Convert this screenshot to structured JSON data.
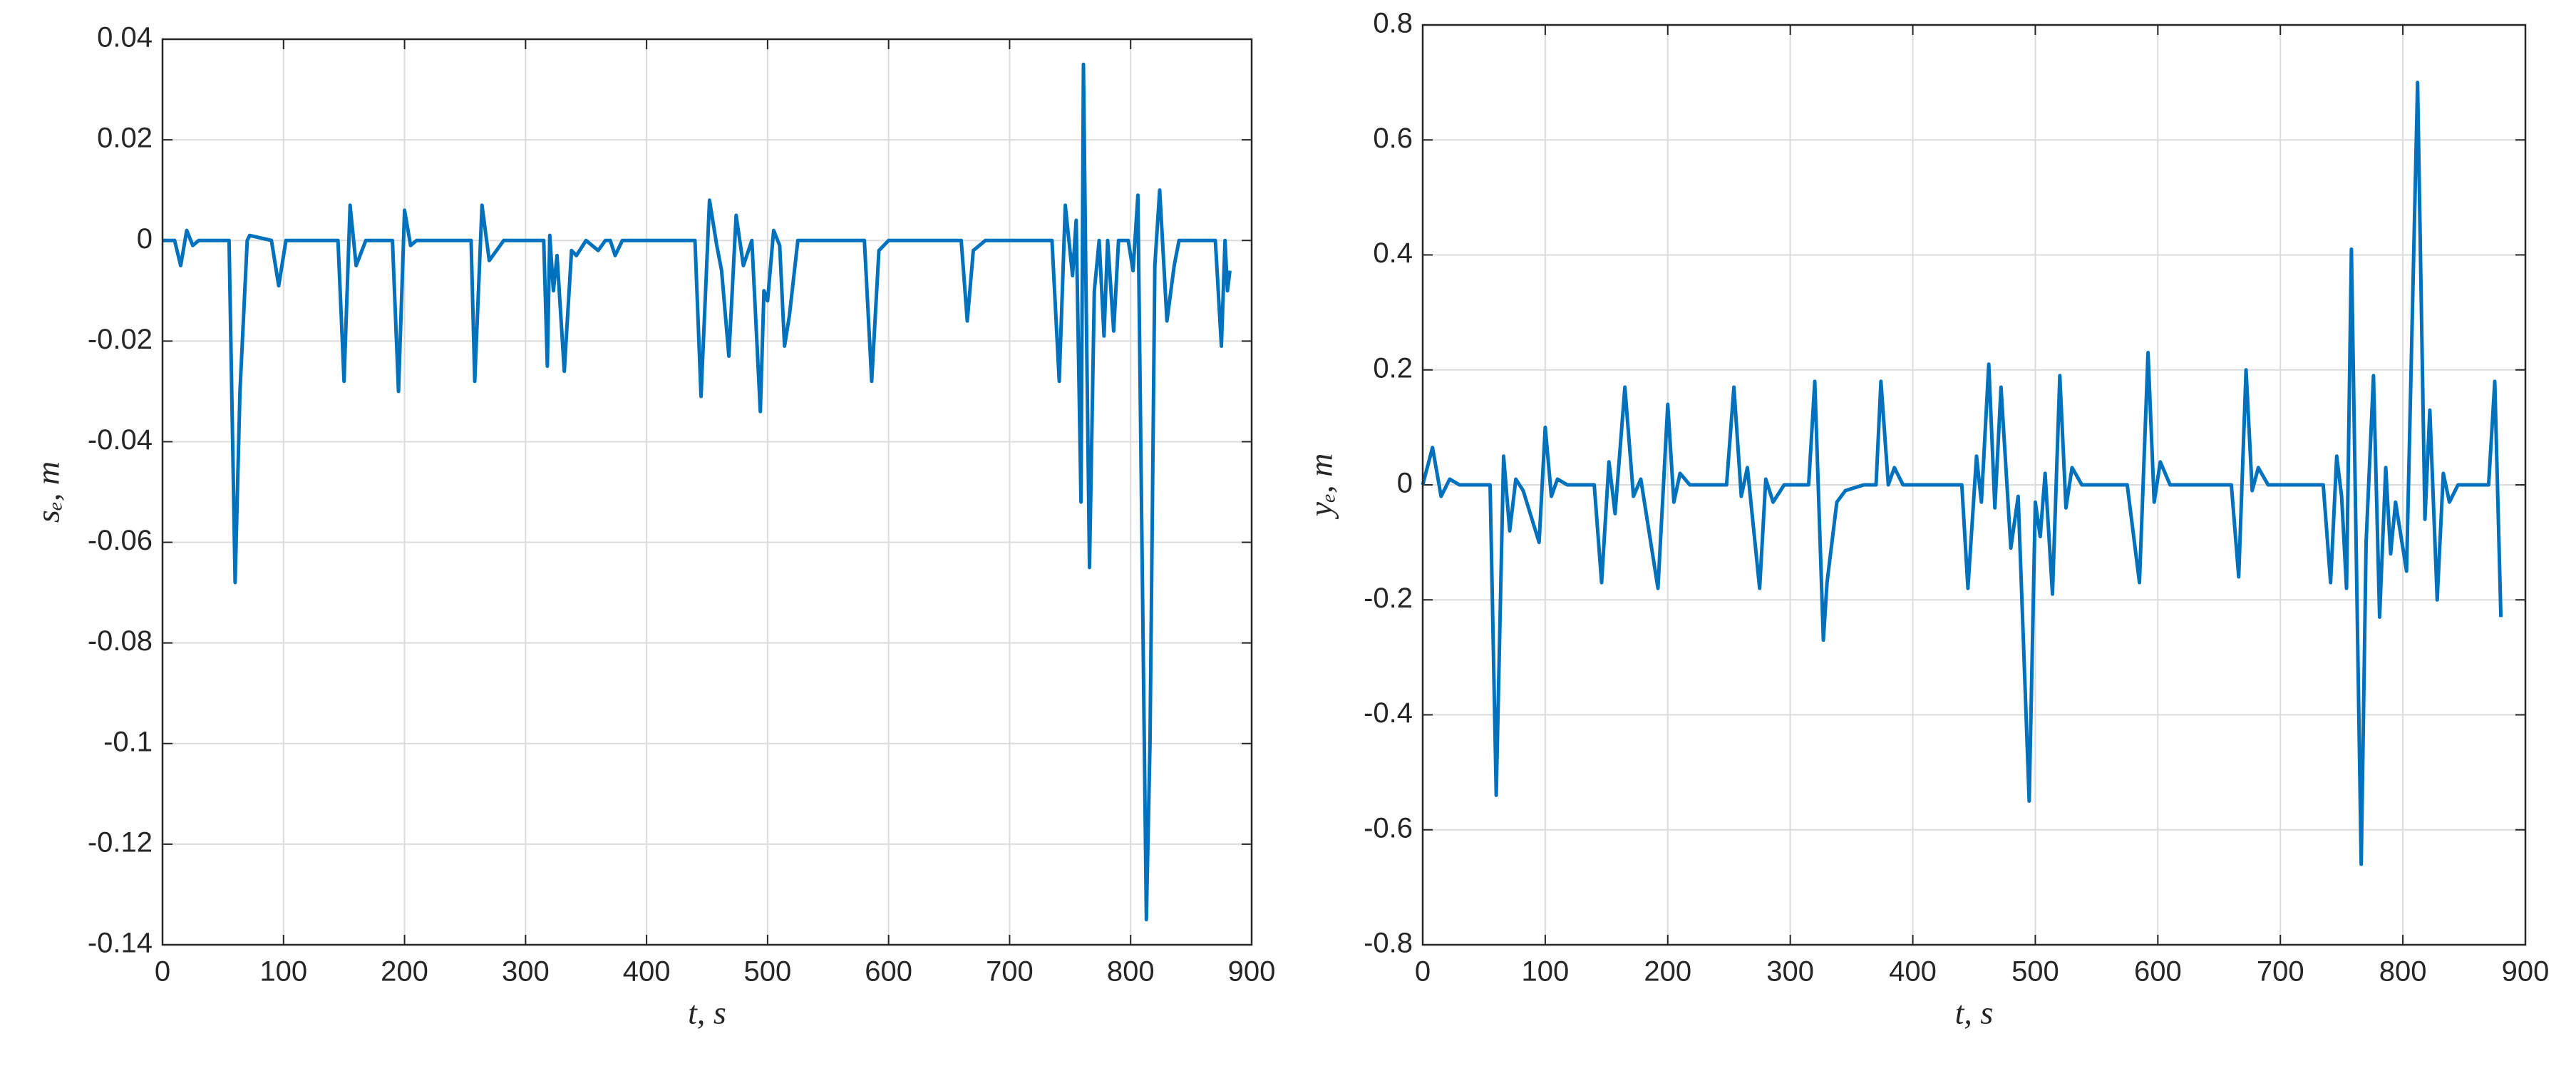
{
  "chart_data": [
    {
      "type": "line",
      "xlabel": "t, s",
      "ylabel": "sₑ, m",
      "color": "#0072bd",
      "grid": true,
      "xlim": [
        0,
        900
      ],
      "xticks": [
        0,
        100,
        200,
        300,
        400,
        500,
        600,
        700,
        800,
        900
      ],
      "ylim": [
        -0.14,
        0.04
      ],
      "yticks": [
        -0.14,
        -0.12,
        -0.1,
        -0.08,
        -0.06,
        -0.04,
        -0.02,
        0,
        0.02,
        0.04
      ],
      "x": [
        0,
        10,
        15,
        20,
        25,
        30,
        55,
        60,
        64,
        70,
        72,
        90,
        96,
        98,
        102,
        145,
        150,
        155,
        160,
        168,
        190,
        195,
        200,
        205,
        210,
        255,
        258,
        264,
        270,
        276,
        282,
        315,
        318,
        320,
        323,
        326,
        332,
        338,
        342,
        350,
        360,
        366,
        370,
        374,
        380,
        440,
        445,
        452,
        458,
        462,
        468,
        474,
        480,
        487,
        494,
        497,
        500,
        505,
        510,
        514,
        518,
        525,
        580,
        586,
        592,
        600,
        660,
        665,
        670,
        680,
        735,
        741,
        746,
        752,
        755,
        759,
        761,
        763,
        766,
        770,
        774,
        778,
        781,
        786,
        790,
        798,
        802,
        806,
        813,
        816,
        820,
        824,
        830,
        836,
        840,
        870,
        875,
        878,
        880,
        882
      ],
      "values": [
        0,
        0,
        -0.005,
        0.002,
        -0.001,
        0,
        0,
        -0.068,
        -0.03,
        0,
        0.001,
        0,
        -0.009,
        -0.006,
        0,
        0,
        -0.028,
        0.007,
        -0.005,
        0,
        0,
        -0.03,
        0.006,
        -0.001,
        0,
        0,
        -0.028,
        0.007,
        -0.004,
        -0.002,
        0,
        0,
        -0.025,
        0.001,
        -0.01,
        -0.003,
        -0.026,
        -0.002,
        -0.003,
        0,
        -0.002,
        0,
        0,
        -0.003,
        0,
        0,
        -0.031,
        0.008,
        -0.001,
        -0.006,
        -0.023,
        0.005,
        -0.005,
        0,
        -0.034,
        -0.01,
        -0.012,
        0.002,
        -0.001,
        -0.021,
        -0.015,
        0,
        0,
        -0.028,
        -0.002,
        0,
        0,
        -0.016,
        -0.002,
        0,
        0,
        -0.028,
        0.007,
        -0.007,
        0.004,
        -0.052,
        0.035,
        -0.007,
        -0.065,
        -0.01,
        0,
        -0.019,
        0,
        -0.018,
        0,
        0,
        -0.006,
        0.009,
        -0.135,
        -0.1,
        -0.005,
        0.01,
        -0.016,
        -0.005,
        0,
        0,
        -0.021,
        0,
        -0.01,
        -0.006
      ]
    },
    {
      "type": "line",
      "xlabel": "t, s",
      "ylabel": "yₑ, m",
      "color": "#0072bd",
      "grid": true,
      "xlim": [
        0,
        900
      ],
      "xticks": [
        0,
        100,
        200,
        300,
        400,
        500,
        600,
        700,
        800,
        900
      ],
      "ylim": [
        -0.8,
        0.8
      ],
      "yticks": [
        -0.8,
        -0.6,
        -0.4,
        -0.2,
        0,
        0.2,
        0.4,
        0.6,
        0.8
      ],
      "x": [
        0,
        8,
        15,
        22,
        30,
        55,
        60,
        66,
        71,
        76,
        82,
        95,
        100,
        105,
        110,
        118,
        140,
        146,
        152,
        157,
        165,
        172,
        178,
        192,
        200,
        205,
        210,
        218,
        248,
        254,
        260,
        265,
        275,
        280,
        286,
        295,
        315,
        320,
        327,
        330,
        338,
        345,
        360,
        370,
        374,
        380,
        385,
        392,
        440,
        445,
        452,
        456,
        462,
        467,
        472,
        480,
        486,
        495,
        500,
        504,
        508,
        514,
        520,
        525,
        530,
        538,
        575,
        585,
        592,
        597,
        602,
        610,
        660,
        666,
        672,
        677,
        682,
        690,
        735,
        741,
        746,
        750,
        754,
        758,
        766,
        770,
        776,
        781,
        786,
        790,
        794,
        803,
        812,
        818,
        822,
        828,
        833,
        838,
        845,
        870,
        875,
        880
      ],
      "values": [
        0,
        0.065,
        -0.02,
        0.01,
        0,
        0,
        -0.54,
        0.05,
        -0.08,
        0.01,
        -0.01,
        -0.1,
        0.1,
        -0.02,
        0.01,
        0,
        0,
        -0.17,
        0.04,
        -0.05,
        0.17,
        -0.02,
        0.01,
        -0.18,
        0.14,
        -0.03,
        0.02,
        0,
        0,
        0.17,
        -0.02,
        0.03,
        -0.18,
        0.01,
        -0.03,
        0,
        0,
        0.18,
        -0.27,
        -0.17,
        -0.03,
        -0.01,
        0,
        0,
        0.18,
        0,
        0.03,
        0,
        0,
        -0.18,
        0.05,
        -0.03,
        0.21,
        -0.04,
        0.17,
        -0.11,
        -0.02,
        -0.55,
        -0.03,
        -0.09,
        0.02,
        -0.19,
        0.19,
        -0.04,
        0.03,
        0,
        0,
        -0.17,
        0.23,
        -0.03,
        0.04,
        0,
        0,
        -0.16,
        0.2,
        -0.01,
        0.03,
        0,
        0,
        -0.17,
        0.05,
        -0.02,
        -0.18,
        0.41,
        -0.66,
        -0.1,
        0.19,
        -0.23,
        0.03,
        -0.12,
        -0.03,
        -0.15,
        0.7,
        -0.06,
        0.13,
        -0.2,
        0.02,
        -0.03,
        0,
        0,
        0.18,
        -0.23
      ]
    }
  ]
}
